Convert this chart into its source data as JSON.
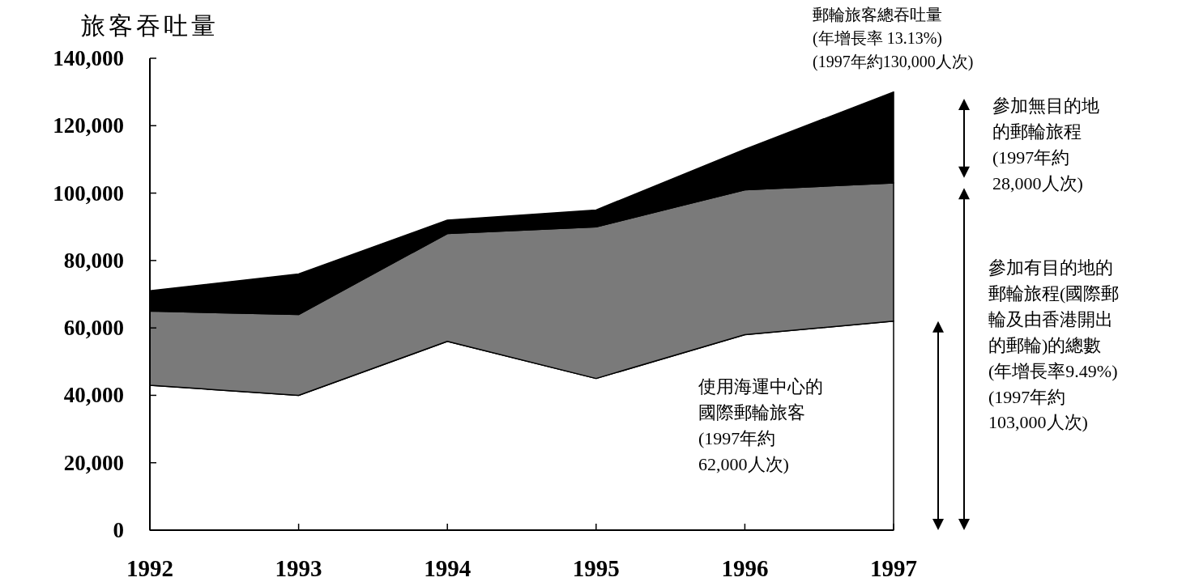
{
  "chart_data": {
    "type": "area",
    "stacked": true,
    "ylabel": "旅客吞吐量",
    "x": [
      1992,
      1993,
      1994,
      1995,
      1996,
      1997
    ],
    "xlim": [
      1992,
      1997
    ],
    "xticks": [
      1992,
      1993,
      1994,
      1995,
      1996,
      1997
    ],
    "ylim": [
      0,
      140000
    ],
    "yticks": [
      0,
      {
        "value": 20000,
        "label": "20,000"
      },
      {
        "value": 40000,
        "label": "40,000"
      },
      {
        "value": 60000,
        "label": "60,000"
      },
      {
        "value": 80000,
        "label": "80,000"
      },
      {
        "value": 100000,
        "label": "100,000"
      },
      {
        "value": 120000,
        "label": "120,000"
      },
      {
        "value": 140000,
        "label": "140,000"
      }
    ],
    "series": [
      {
        "color": "#ffffff",
        "values": [
          43000,
          40000,
          56000,
          45000,
          58000,
          62000
        ]
      },
      {
        "color": "#7a7a7a",
        "values": [
          22000,
          24000,
          32000,
          45000,
          43000,
          41000
        ]
      },
      {
        "color": "#000000",
        "values": [
          6000,
          12000,
          4000,
          5000,
          12000,
          27000
        ]
      }
    ],
    "annotations": [
      "郵輪旅客總吞吐量(年增長率 13.13%)(1997年約130,000人次)",
      "參加無目的地的郵輪旅程(1997年約28,000人次)",
      "參加有目的地的郵輪旅程(國際郵輪及由香港開出的郵輪)的總數(年增長率9.49%)(1997年約103,000人次)",
      "使用海運中心的國際郵輪旅客(1997年約62,000人次)"
    ],
    "grid": false
  }
}
